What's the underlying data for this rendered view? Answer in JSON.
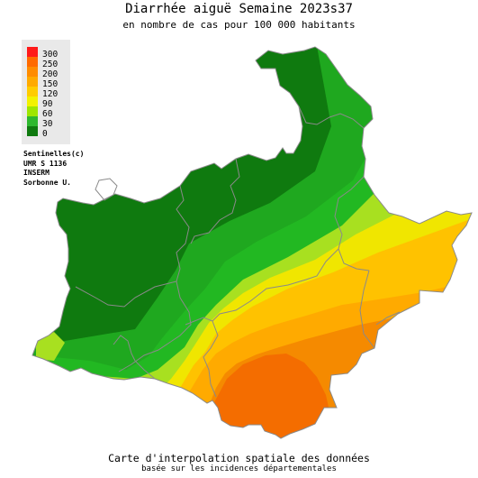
{
  "title": "Diarrhée aiguë Semaine 2023s37",
  "subtitle": "en nombre de cas pour 100 000 habitants",
  "footer": {
    "title": "Carte d'interpolation spatiale des données",
    "subtitle": "basée sur les incidences départementales"
  },
  "legend": {
    "items": [
      {
        "label": "300",
        "color": "#ff1a1a"
      },
      {
        "label": "250",
        "color": "#ff6a00"
      },
      {
        "label": "200",
        "color": "#ff8c00"
      },
      {
        "label": "150",
        "color": "#ffaa00"
      },
      {
        "label": "120",
        "color": "#ffcc00"
      },
      {
        "label": "90",
        "color": "#f2f200"
      },
      {
        "label": "60",
        "color": "#9ee600"
      },
      {
        "label": "30",
        "color": "#2eb82e"
      },
      {
        "label": "0",
        "color": "#0f7a0f"
      }
    ]
  },
  "credits": [
    "Sentinelles(c)",
    "UMR S 1136",
    "INSERM",
    "Sorbonne U."
  ],
  "map_colors": {
    "dark_green": "#0f7a0f",
    "medium_green": "#1fa81f",
    "bright_green": "#22b822",
    "light_green": "#a8e020",
    "yellow": "#f0e600",
    "amber": "#ffc200",
    "orange_light": "#ffaa00",
    "orange": "#f58a00",
    "dark_orange": "#f46d00",
    "border": "#8a8a8a"
  }
}
